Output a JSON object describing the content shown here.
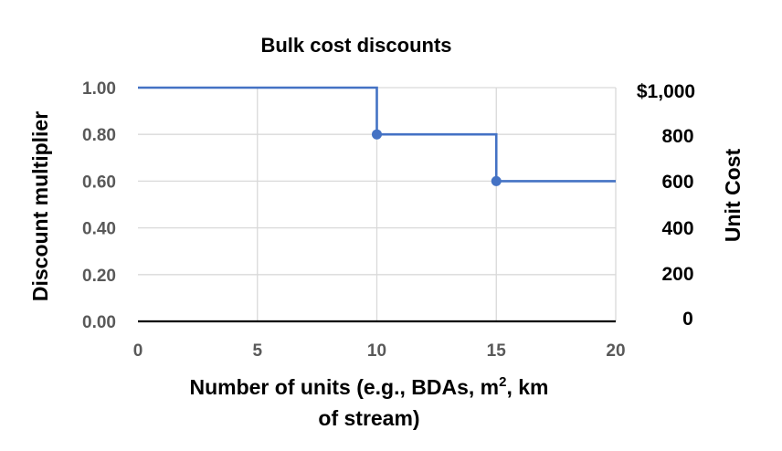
{
  "chart_data": {
    "type": "line",
    "title": "Bulk cost discounts",
    "xlabel_line1": "Number of units (e.g., BDAs, m",
    "xlabel_sup": "2",
    "xlabel_line1_end": ", km",
    "xlabel_line2": "of stream)",
    "ylabel": "Discount multiplier",
    "y2label": "Unit Cost",
    "xlim": [
      0,
      20
    ],
    "ylim": [
      0,
      1
    ],
    "x_ticks": [
      "0",
      "5",
      "10",
      "15",
      "20"
    ],
    "y_ticks": [
      "0.00",
      "0.20",
      "0.40",
      "0.60",
      "0.80",
      "1.00"
    ],
    "y2_ticks": [
      "0",
      "200",
      "400",
      "600",
      "800",
      "$1,000"
    ],
    "grid": true,
    "series": [
      {
        "color": "#4472C4",
        "x": [
          0,
          10,
          10,
          15,
          15,
          20
        ],
        "y": [
          1.0,
          1.0,
          0.8,
          0.8,
          0.6,
          0.6
        ]
      }
    ],
    "markers": [
      {
        "x": 10,
        "y": 0.8
      },
      {
        "x": 15,
        "y": 0.6
      }
    ]
  }
}
